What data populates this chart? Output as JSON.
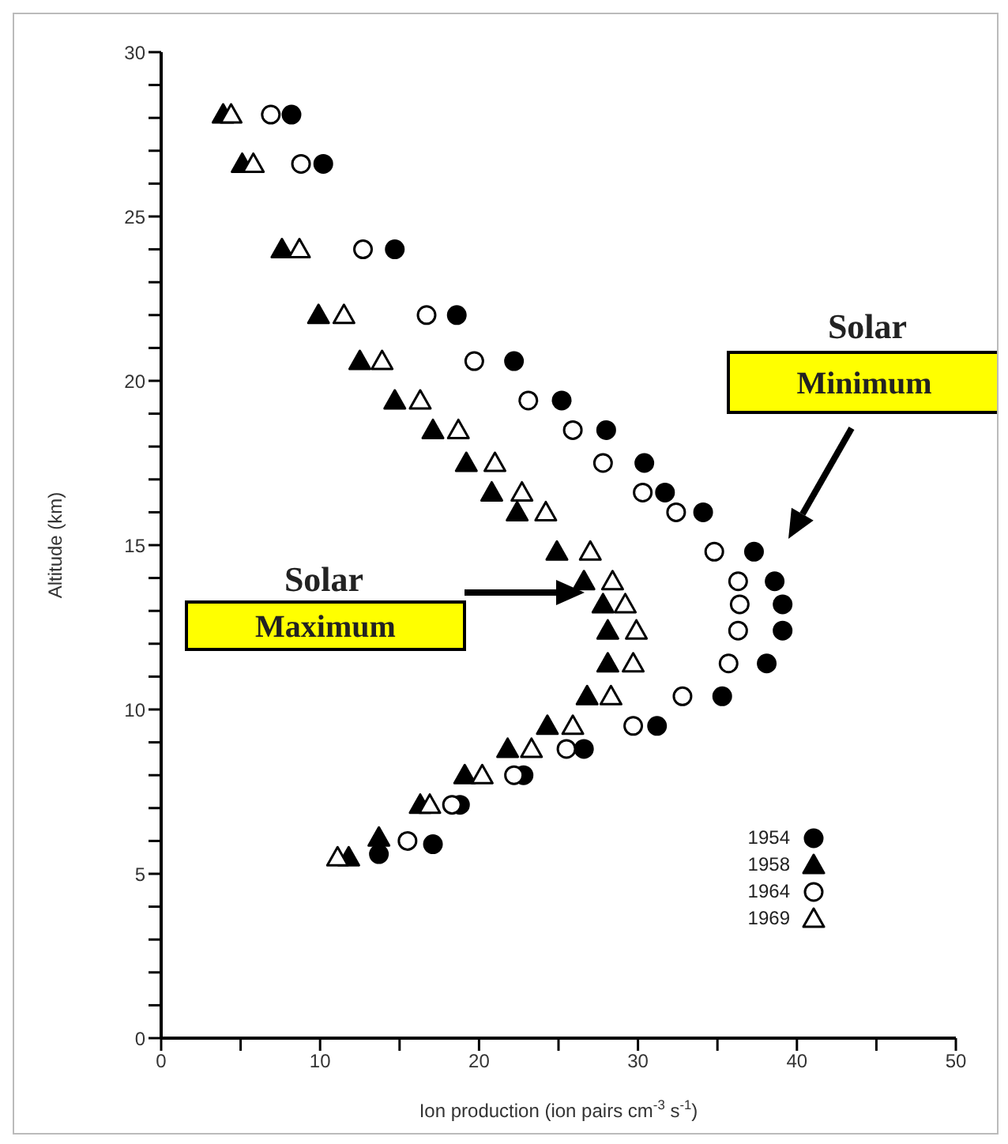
{
  "chart_data": {
    "type": "scatter",
    "xlabel": "Ion production (ion pairs cm$^{-3}$ s$^{-1}$)",
    "ylabel": "Altitude (km)",
    "xlim": [
      0,
      50
    ],
    "ylim": [
      0,
      30
    ],
    "xticks": [
      0,
      {
        "value": 5,
        "label": null
      },
      10,
      {
        "value": 15,
        "label": null
      },
      20,
      {
        "value": 25,
        "label": null
      },
      30,
      {
        "value": 35,
        "label": null
      },
      40,
      {
        "value": 45,
        "label": null
      },
      50
    ],
    "yticks": [
      0,
      {
        "value": 1,
        "label": null
      },
      {
        "value": 2,
        "label": null
      },
      {
        "value": 3,
        "label": null
      },
      {
        "value": 4,
        "label": null
      },
      5,
      {
        "value": 6,
        "label": null
      },
      {
        "value": 7,
        "label": null
      },
      {
        "value": 8,
        "label": null
      },
      {
        "value": 9,
        "label": null
      },
      10,
      {
        "value": 11,
        "label": null
      },
      {
        "value": 12,
        "label": null
      },
      {
        "value": 13,
        "label": null
      },
      {
        "value": 14,
        "label": null
      },
      15,
      {
        "value": 16,
        "label": null
      },
      {
        "value": 17,
        "label": null
      },
      {
        "value": 18,
        "label": null
      },
      {
        "value": 19,
        "label": null
      },
      20,
      {
        "value": 21,
        "label": null
      },
      {
        "value": 22,
        "label": null
      },
      {
        "value": 23,
        "label": null
      },
      {
        "value": 24,
        "label": null
      },
      25,
      {
        "value": 26,
        "label": null
      },
      {
        "value": 27,
        "label": null
      },
      {
        "value": 28,
        "label": null
      },
      {
        "value": 29,
        "label": null
      },
      30
    ],
    "grid": false,
    "legend": "bottom right",
    "series": [
      {
        "name": "1954",
        "color": "#000000",
        "marker": "circle",
        "x": [
          8.2,
          10.2,
          14.7,
          18.6,
          22.2,
          25.2,
          28.0,
          30.4,
          31.7,
          34.1,
          37.3,
          38.6,
          39.1,
          39.1,
          38.1,
          35.3,
          31.2,
          26.6,
          22.8,
          18.8,
          17.1,
          13.7
        ],
        "values": [
          28.1,
          26.6,
          24.0,
          22.0,
          20.6,
          19.4,
          18.5,
          17.5,
          16.6,
          16.0,
          14.8,
          13.9,
          13.2,
          12.4,
          11.4,
          10.4,
          9.5,
          8.8,
          8.0,
          7.1,
          5.9,
          5.6
        ]
      },
      {
        "name": "1958",
        "color": "#000000",
        "marker": "triangle",
        "x": [
          3.9,
          5.1,
          7.6,
          9.9,
          12.5,
          14.7,
          17.1,
          19.2,
          20.8,
          22.4,
          24.9,
          26.6,
          27.8,
          28.1,
          28.1,
          26.8,
          24.3,
          21.8,
          19.1,
          16.3,
          13.7,
          11.8
        ],
        "values": [
          28.1,
          26.6,
          24.0,
          22.0,
          20.6,
          19.4,
          18.5,
          17.5,
          16.6,
          16.0,
          14.8,
          13.9,
          13.2,
          12.4,
          11.4,
          10.4,
          9.5,
          8.8,
          8.0,
          7.1,
          6.1,
          5.5
        ]
      },
      {
        "name": "1964",
        "color": "#ffffff",
        "marker": "circle",
        "x": [
          6.9,
          8.8,
          12.7,
          16.7,
          19.7,
          23.1,
          25.9,
          27.8,
          30.3,
          32.4,
          34.8,
          36.3,
          36.4,
          36.3,
          35.7,
          32.8,
          29.7,
          25.5,
          22.2,
          18.3,
          15.5
        ],
        "values": [
          28.1,
          26.6,
          24.0,
          22.0,
          20.6,
          19.4,
          18.5,
          17.5,
          16.6,
          16.0,
          14.8,
          13.9,
          13.2,
          12.4,
          11.4,
          10.4,
          9.5,
          8.8,
          8.0,
          7.1,
          6.0
        ]
      },
      {
        "name": "1969",
        "color": "#ffffff",
        "marker": "triangle",
        "x": [
          4.4,
          5.8,
          8.7,
          11.5,
          13.9,
          16.3,
          18.7,
          21.0,
          22.7,
          24.2,
          27.0,
          28.4,
          29.2,
          29.9,
          29.7,
          28.3,
          25.9,
          23.3,
          20.2,
          16.9,
          11.1
        ],
        "values": [
          28.1,
          26.6,
          24.0,
          22.0,
          20.6,
          19.4,
          18.5,
          17.5,
          16.6,
          16.0,
          14.8,
          13.9,
          13.2,
          12.4,
          11.4,
          10.4,
          9.5,
          8.8,
          8.0,
          7.1,
          5.5
        ]
      }
    ],
    "annotations": [
      "Solar Maximum",
      "Solar Minimum"
    ]
  }
}
